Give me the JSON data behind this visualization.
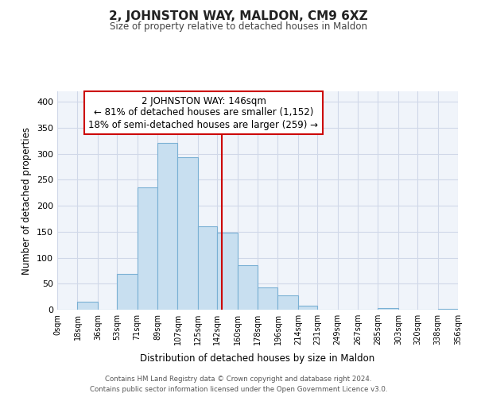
{
  "title": "2, JOHNSTON WAY, MALDON, CM9 6XZ",
  "subtitle": "Size of property relative to detached houses in Maldon",
  "xlabel": "Distribution of detached houses by size in Maldon",
  "ylabel": "Number of detached properties",
  "bar_color": "#c8dff0",
  "bar_edge_color": "#7ab0d4",
  "bin_edges": [
    0,
    18,
    36,
    53,
    71,
    89,
    107,
    125,
    142,
    160,
    178,
    196,
    214,
    231,
    249,
    267,
    285,
    303,
    320,
    338,
    356
  ],
  "bin_labels": [
    "0sqm",
    "18sqm",
    "36sqm",
    "53sqm",
    "71sqm",
    "89sqm",
    "107sqm",
    "125sqm",
    "142sqm",
    "160sqm",
    "178sqm",
    "196sqm",
    "214sqm",
    "231sqm",
    "249sqm",
    "267sqm",
    "285sqm",
    "303sqm",
    "320sqm",
    "338sqm",
    "356sqm"
  ],
  "counts": [
    0,
    15,
    0,
    68,
    235,
    320,
    293,
    160,
    148,
    85,
    43,
    27,
    7,
    0,
    0,
    0,
    3,
    0,
    0,
    2
  ],
  "ylim": [
    0,
    420
  ],
  "yticks": [
    0,
    50,
    100,
    150,
    200,
    250,
    300,
    350,
    400
  ],
  "property_line_x": 146,
  "property_line_color": "#cc0000",
  "annotation_title": "2 JOHNSTON WAY: 146sqm",
  "annotation_line1": "← 81% of detached houses are smaller (1,152)",
  "annotation_line2": "18% of semi-detached houses are larger (259) →",
  "footer_line1": "Contains HM Land Registry data © Crown copyright and database right 2024.",
  "footer_line2": "Contains public sector information licensed under the Open Government Licence v3.0.",
  "background_color": "#ffffff",
  "grid_color": "#d0d8e8",
  "plot_bg_color": "#f0f4fa"
}
